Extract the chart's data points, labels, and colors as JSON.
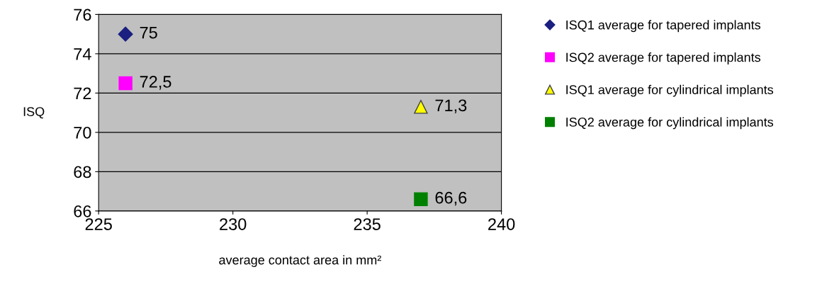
{
  "chart_data": {
    "type": "scatter",
    "xlabel": "average contact area in mm²",
    "ylabel": "ISQ",
    "xlim": [
      225,
      240
    ],
    "xticks": [
      225,
      230,
      235,
      240
    ],
    "ylim": [
      66,
      76
    ],
    "yticks": [
      66,
      68,
      70,
      72,
      74,
      76
    ],
    "grid": "y",
    "legend": "right",
    "x": [
      226,
      237
    ],
    "series": [
      {
        "name": "ISQ1 average for tapered implants",
        "color": "#1a1f80",
        "marker": "diamond",
        "values": [
          75,
          null
        ],
        "value_labels": [
          "75",
          null
        ]
      },
      {
        "name": "ISQ2 average for tapered implants",
        "color": "#ff00ff",
        "marker": "square",
        "values": [
          72.5,
          null
        ],
        "value_labels": [
          "72,5",
          null
        ]
      },
      {
        "name": "ISQ1 average for cylindrical implants",
        "color": "#ffff00",
        "marker": "triangle",
        "values": [
          null,
          71.3
        ],
        "value_labels": [
          null,
          "71,3"
        ]
      },
      {
        "name": "ISQ2 average for cylindrical implants",
        "color": "#008000",
        "marker": "square",
        "values": [
          null,
          66.6
        ],
        "value_labels": [
          null,
          "66,6"
        ]
      }
    ]
  }
}
